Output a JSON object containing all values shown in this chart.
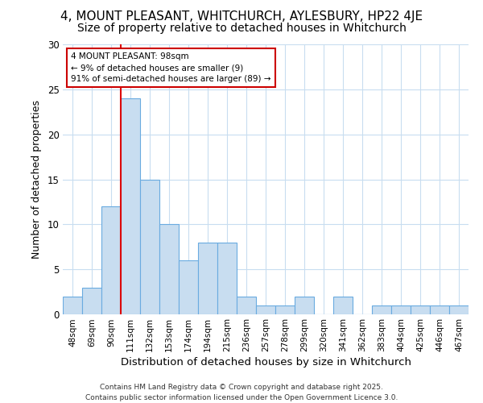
{
  "title1": "4, MOUNT PLEASANT, WHITCHURCH, AYLESBURY, HP22 4JE",
  "title2": "Size of property relative to detached houses in Whitchurch",
  "xlabel": "Distribution of detached houses by size in Whitchurch",
  "ylabel": "Number of detached properties",
  "bar_labels": [
    "48sqm",
    "69sqm",
    "90sqm",
    "111sqm",
    "132sqm",
    "153sqm",
    "174sqm",
    "194sqm",
    "215sqm",
    "236sqm",
    "257sqm",
    "278sqm",
    "299sqm",
    "320sqm",
    "341sqm",
    "362sqm",
    "383sqm",
    "404sqm",
    "425sqm",
    "446sqm",
    "467sqm"
  ],
  "bar_values": [
    2,
    3,
    12,
    24,
    15,
    10,
    6,
    8,
    8,
    2,
    1,
    1,
    2,
    0,
    2,
    0,
    1,
    1,
    1,
    1,
    1
  ],
  "bar_color": "#c8ddf0",
  "bar_edge_color": "#6aabe0",
  "bar_width": 1.0,
  "ylim": [
    0,
    30
  ],
  "yticks": [
    0,
    5,
    10,
    15,
    20,
    25,
    30
  ],
  "red_line_x": 2.5,
  "red_line_color": "#dd0000",
  "annotation_text": "4 MOUNT PLEASANT: 98sqm\n← 9% of detached houses are smaller (9)\n91% of semi-detached houses are larger (89) →",
  "annotation_box_color": "#ffffff",
  "annotation_box_edge": "#cc0000",
  "bg_color": "#ffffff",
  "grid_color": "#c8ddf0",
  "title_fontsize": 11,
  "subtitle_fontsize": 10,
  "footer_text": "Contains HM Land Registry data © Crown copyright and database right 2025.\nContains public sector information licensed under the Open Government Licence 3.0."
}
